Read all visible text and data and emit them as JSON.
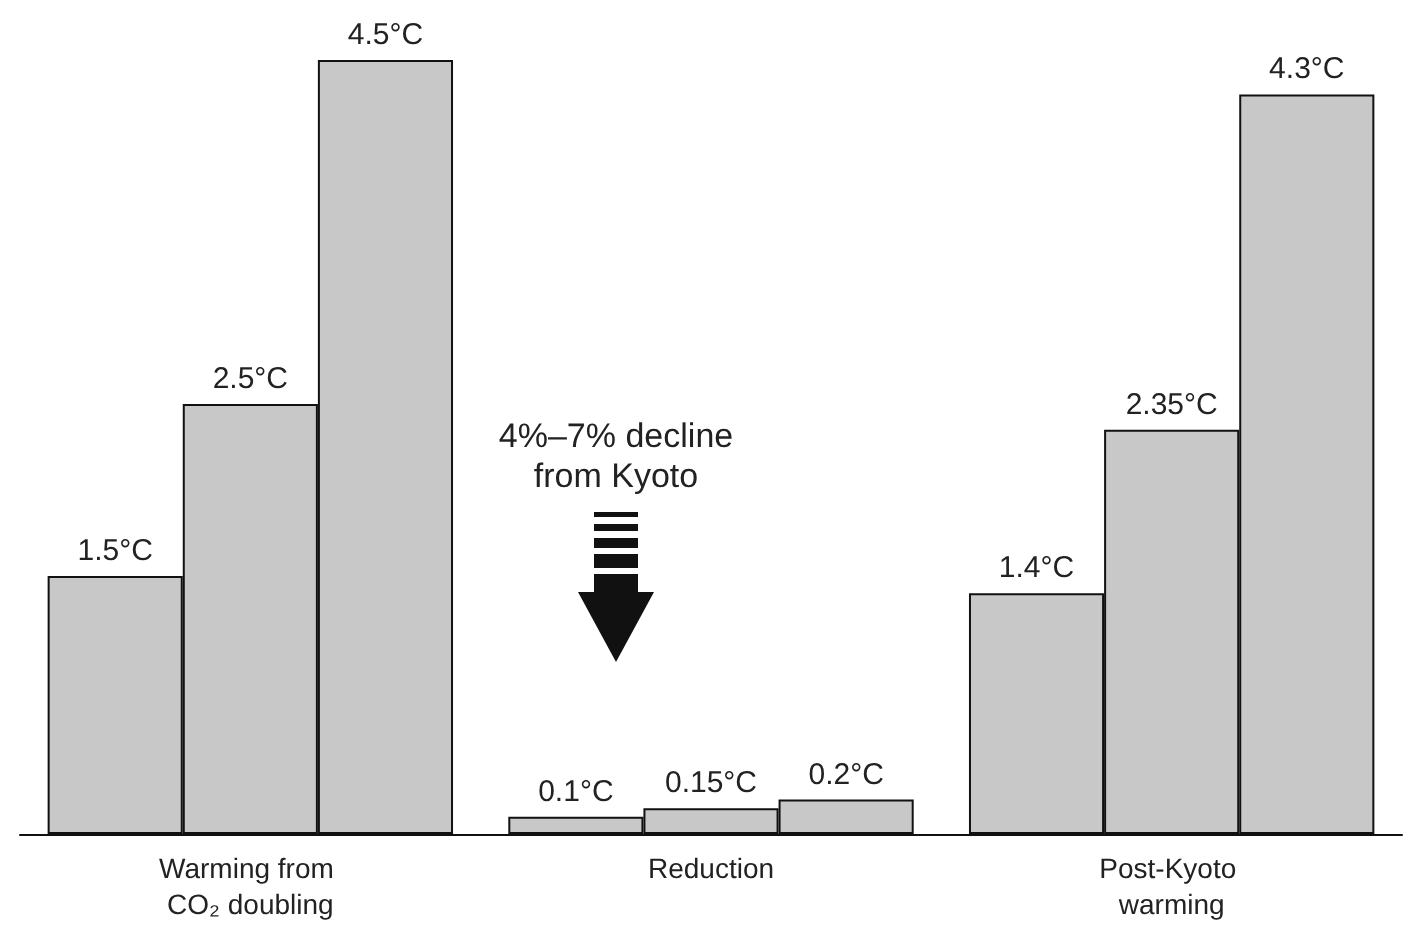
{
  "chart_data": {
    "type": "bar",
    "categories": [
      "Warming from CO₂ doubling",
      "Reduction",
      "Post-Kyoto warming"
    ],
    "series": [
      {
        "color": "#c8c8c8",
        "values": [
          1.5,
          0.1,
          1.4
        ],
        "value_labels": [
          "1.5°C",
          "0.1°C",
          "1.4°C"
        ]
      },
      {
        "color": "#c8c8c8",
        "values": [
          2.5,
          0.15,
          2.35
        ],
        "value_labels": [
          "2.5°C",
          "0.15°C",
          "2.35°C"
        ]
      },
      {
        "color": "#c8c8c8",
        "values": [
          4.5,
          0.2,
          4.3
        ],
        "value_labels": [
          "4.5°C",
          "0.2°C",
          "4.3°C"
        ]
      }
    ],
    "annotations": [
      "4%–7% decline\nfrom Kyoto"
    ]
  }
}
